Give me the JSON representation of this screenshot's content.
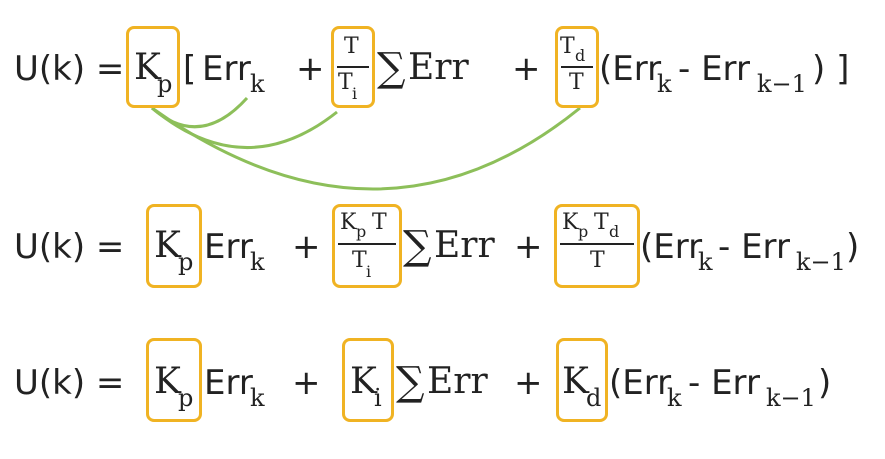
{
  "colors": {
    "box": "#f0b323",
    "arc": "#8dbf5a",
    "text": "#222222"
  },
  "row1": {
    "lhs": "U(k) =",
    "k": "K",
    "p": "p",
    "lbr": "[",
    "err1": "Err",
    "k1": "k",
    "plus1": "+",
    "f1_num": "T",
    "f1_den": "T",
    "f1_den_sub": "i",
    "sigma": "∑",
    "err2": "Err",
    "plus2": "+",
    "f2_num": "T",
    "f2_num_sub": "d",
    "f2_den": "T",
    "paren": "(Err",
    "k2": "k",
    "minus": "- Err",
    "km1": "k−1",
    "close": ") ]"
  },
  "row2": {
    "lhs": "U(k) =",
    "k": "K",
    "p": "p",
    "err1": "Err",
    "k1": "k",
    "plus1": "+",
    "f1_num_k": "K",
    "f1_num_p": "p",
    "f1_num_t": "T",
    "f1_den": "T",
    "f1_den_sub": "i",
    "sigma": "∑",
    "err2": "Err",
    "plus2": "+",
    "f2_num_k": "K",
    "f2_num_p": "p",
    "f2_num_t": "T",
    "f2_num_d": "d",
    "f2_den": "T",
    "paren": "(Err",
    "k2": "k",
    "minus": "- Err",
    "km1": "k−1",
    "close": ")"
  },
  "row3": {
    "lhs": "U(k) =",
    "k": "K",
    "p": "p",
    "err1": "Err",
    "k1": "k",
    "plus1": "+",
    "ki": "K",
    "i": "i",
    "sigma": "∑",
    "err2": "Err",
    "plus2": "+",
    "kd": "K",
    "d": "d",
    "paren": "(Err",
    "k2": "k",
    "minus": "- Err",
    "km1": "k−1",
    "close": ")"
  }
}
